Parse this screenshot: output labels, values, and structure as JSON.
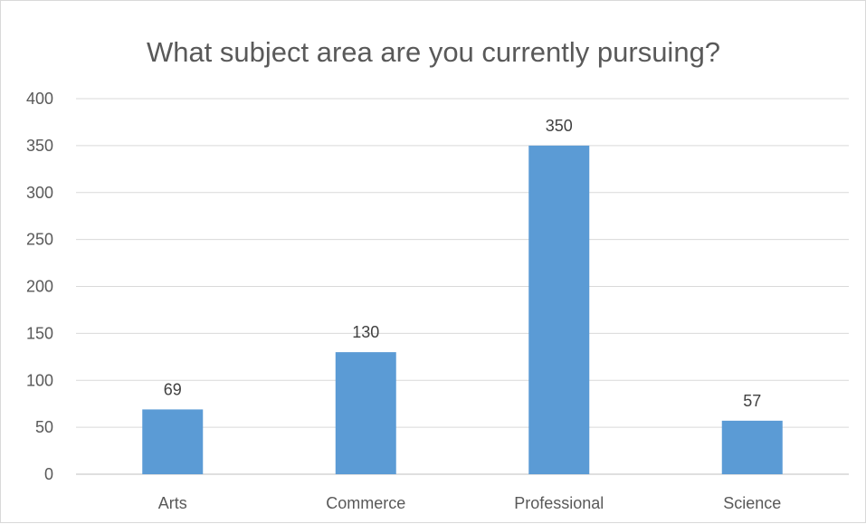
{
  "chart_data": {
    "type": "bar",
    "title": "What subject area are you currently pursuing?",
    "categories": [
      "Arts",
      "Commerce",
      "Professional",
      "Science"
    ],
    "values": [
      69,
      130,
      350,
      57
    ],
    "data_labels": [
      "69",
      "130",
      "350",
      "57"
    ],
    "xlabel": "",
    "ylabel": "",
    "ylim": [
      0,
      400
    ],
    "yticks": [
      0,
      50,
      100,
      150,
      200,
      250,
      300,
      350,
      400
    ],
    "ytick_labels": [
      "0",
      "50",
      "100",
      "150",
      "200",
      "250",
      "300",
      "350",
      "400"
    ],
    "grid": true,
    "legend": "none",
    "bar_color": "#5b9bd5"
  }
}
